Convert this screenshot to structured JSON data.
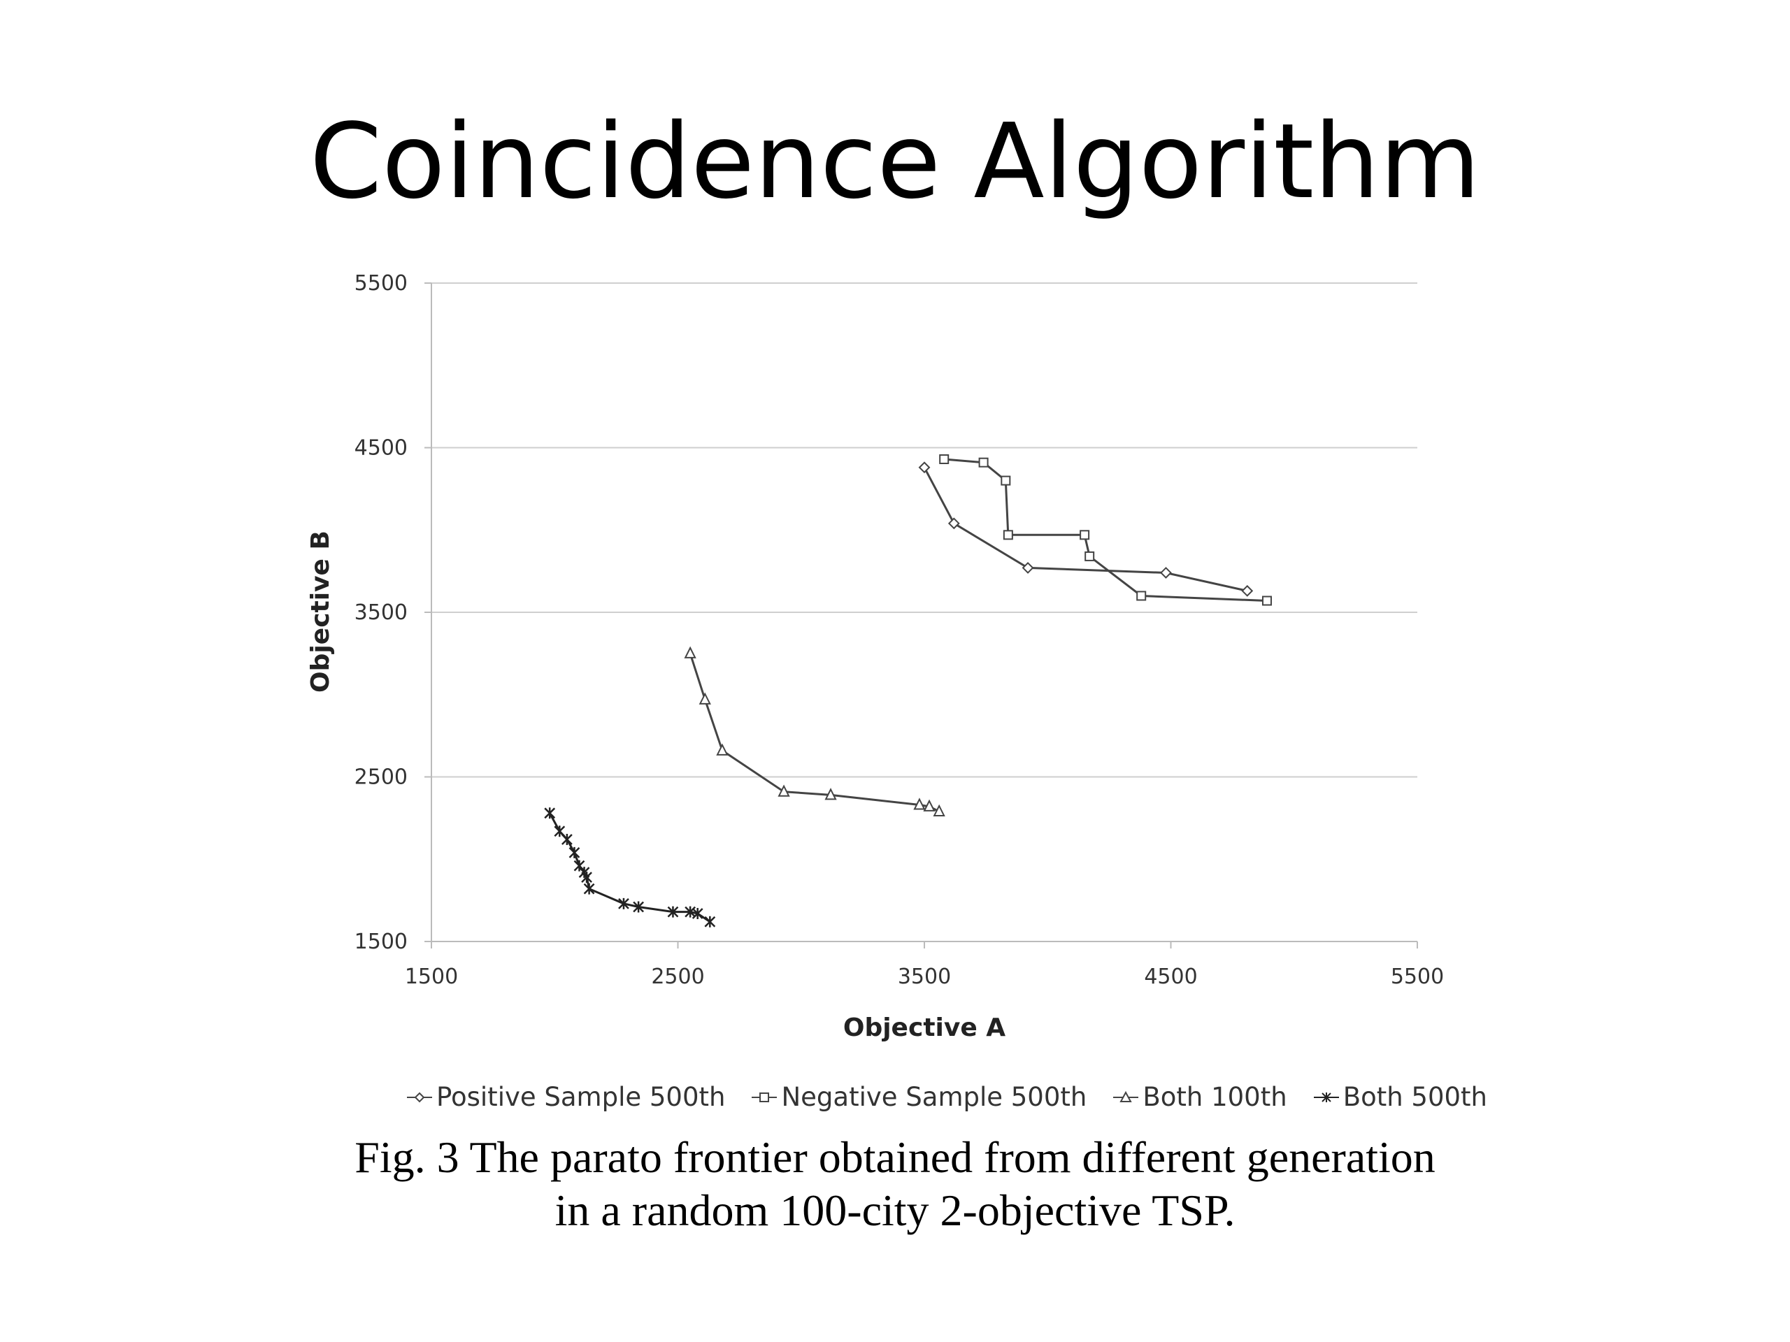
{
  "slide": {
    "title": "Coincidence Algorithm",
    "caption_line1": "Fig. 3 The parato frontier obtained from different generation",
    "caption_line2": "in a random 100-city 2-objective TSP."
  },
  "chart_data": {
    "type": "line",
    "xlabel": "Objective A",
    "ylabel": "Objective B",
    "xlim": [
      1500,
      5500
    ],
    "ylim": [
      1500,
      5500
    ],
    "xticks": [
      "1500",
      "2500",
      "3500",
      "4500",
      "5500"
    ],
    "yticks": [
      "1500",
      "2500",
      "3500",
      "4500",
      "5500"
    ],
    "grid": "horizontal",
    "legend_position": "bottom",
    "series": [
      {
        "name": "Positive Sample 500th",
        "marker": "diamond",
        "color": "#444444",
        "x": [
          3500,
          3620,
          3920,
          4480,
          4810
        ],
        "y": [
          4380,
          4040,
          3770,
          3740,
          3630
        ]
      },
      {
        "name": "Negative Sample 500th",
        "marker": "square",
        "color": "#444444",
        "x": [
          3580,
          3740,
          3830,
          3840,
          4150,
          4170,
          4380,
          4890
        ],
        "y": [
          4430,
          4410,
          4300,
          3970,
          3970,
          3840,
          3600,
          3570
        ]
      },
      {
        "name": "Both 100th",
        "marker": "triangle",
        "color": "#444444",
        "x": [
          2550,
          2610,
          2680,
          2930,
          3120,
          3480,
          3520,
          3560
        ],
        "y": [
          3250,
          2970,
          2660,
          2410,
          2390,
          2330,
          2320,
          2290
        ]
      },
      {
        "name": "Both 500th",
        "marker": "star",
        "color": "#222222",
        "x": [
          1980,
          2020,
          2050,
          2080,
          2100,
          2120,
          2130,
          2140,
          2280,
          2340,
          2480,
          2550,
          2580,
          2630
        ],
        "y": [
          2280,
          2170,
          2120,
          2040,
          1960,
          1920,
          1890,
          1820,
          1730,
          1710,
          1680,
          1680,
          1670,
          1620
        ]
      }
    ]
  }
}
